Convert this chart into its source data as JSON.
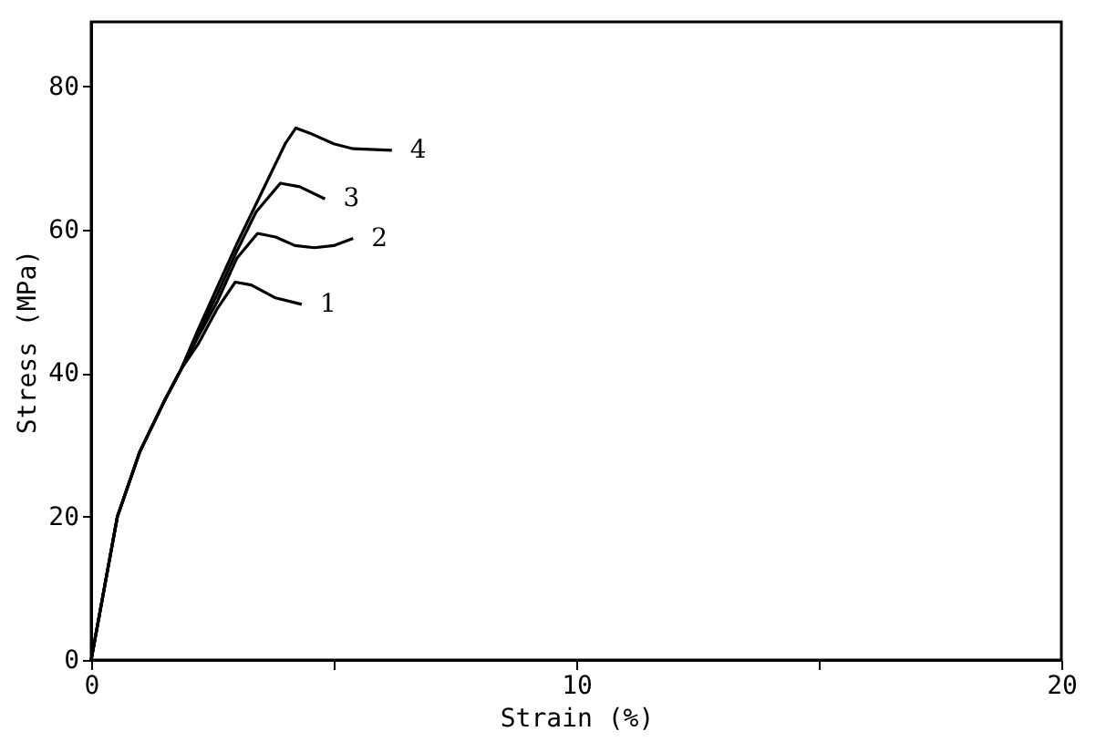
{
  "chart_data": {
    "type": "line",
    "xlabel": "Strain (%)",
    "ylabel": "Stress (MPa)",
    "xlim": [
      0,
      20
    ],
    "ylim": [
      0,
      89
    ],
    "xticks": [
      0,
      {
        "value": 5,
        "label": null
      },
      10,
      {
        "value": 15,
        "label": null
      },
      20
    ],
    "yticks": [
      0,
      20,
      40,
      60,
      80
    ],
    "grid": false,
    "legend": false,
    "marker": "none",
    "line_style": "solid",
    "series": [
      {
        "name": "1",
        "color": "#000000",
        "x": [
          0,
          0.54,
          1.0,
          1.5,
          1.85,
          2.2,
          2.6,
          2.97,
          3.3,
          3.8,
          4.34
        ],
        "values": [
          0,
          20,
          29,
          36,
          40.5,
          44,
          49,
          52.7,
          52.3,
          50.5,
          49.6
        ]
      },
      {
        "name": "2",
        "color": "#000000",
        "x": [
          0,
          0.54,
          1.0,
          1.5,
          1.85,
          2.2,
          2.6,
          3.0,
          3.43,
          3.8,
          4.2,
          4.6,
          5.0,
          5.4
        ],
        "values": [
          0,
          20,
          29,
          36,
          40.5,
          45,
          50,
          56,
          59.5,
          59,
          57.8,
          57.5,
          57.8,
          58.8
        ]
      },
      {
        "name": "3",
        "color": "#000000",
        "x": [
          0,
          0.54,
          1.0,
          1.5,
          1.85,
          2.2,
          2.6,
          3.0,
          3.4,
          3.9,
          4.3,
          4.82
        ],
        "values": [
          0,
          20,
          29,
          36,
          40.5,
          45.5,
          51,
          57,
          62.5,
          66.5,
          66,
          64.3
        ]
      },
      {
        "name": "4",
        "color": "#000000",
        "x": [
          0,
          0.54,
          1.0,
          1.5,
          1.85,
          2.2,
          2.6,
          3.0,
          3.5,
          4.0,
          4.22,
          4.5,
          5.0,
          5.4,
          6.2
        ],
        "values": [
          0,
          20,
          29,
          36,
          40.5,
          46,
          52,
          58,
          65,
          72,
          74.2,
          73.5,
          72,
          71.3,
          71.1
        ]
      }
    ]
  }
}
